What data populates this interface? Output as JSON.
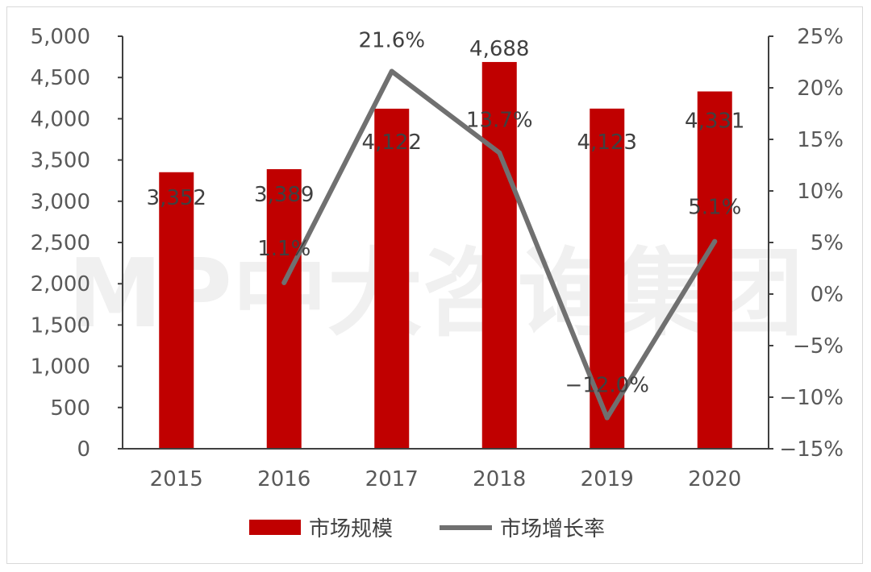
{
  "watermark": "MP中大咨询集团",
  "chart_data": {
    "type": "bar+line",
    "categories": [
      "2015",
      "2016",
      "2017",
      "2018",
      "2019",
      "2020"
    ],
    "series": [
      {
        "name": "市场规模",
        "type": "bar",
        "axis": "left",
        "color": "#c00000",
        "values": [
          3352,
          3389,
          4122,
          4688,
          4123,
          4331
        ],
        "labels": [
          "3,352",
          "3,389",
          "4,122",
          "4,688",
          "4,123",
          "4,331"
        ]
      },
      {
        "name": "市场增长率",
        "type": "line",
        "axis": "right",
        "color": "#707070",
        "values": [
          null,
          1.1,
          21.6,
          13.7,
          -12.0,
          5.1
        ],
        "labels": [
          "",
          "1.1%",
          "21.6%",
          "13.7%",
          "−12.0%",
          "5.1%"
        ]
      }
    ],
    "y_left": {
      "ylim": [
        0,
        5000
      ],
      "ticks": [
        0,
        500,
        1000,
        1500,
        2000,
        2500,
        3000,
        3500,
        4000,
        4500,
        5000
      ],
      "tick_labels": [
        "0",
        "500",
        "1,000",
        "1,500",
        "2,000",
        "2,500",
        "3,000",
        "3,500",
        "4,000",
        "4,500",
        "5,000"
      ]
    },
    "y_right": {
      "ylim": [
        -15,
        25
      ],
      "ticks": [
        -15,
        -10,
        -5,
        0,
        5,
        10,
        15,
        20,
        25
      ],
      "tick_labels": [
        "−15%",
        "−10%",
        "−5%",
        "0%",
        "5%",
        "10%",
        "15%",
        "20%",
        "25%"
      ]
    },
    "grid": false,
    "legend": "bottom-center"
  }
}
